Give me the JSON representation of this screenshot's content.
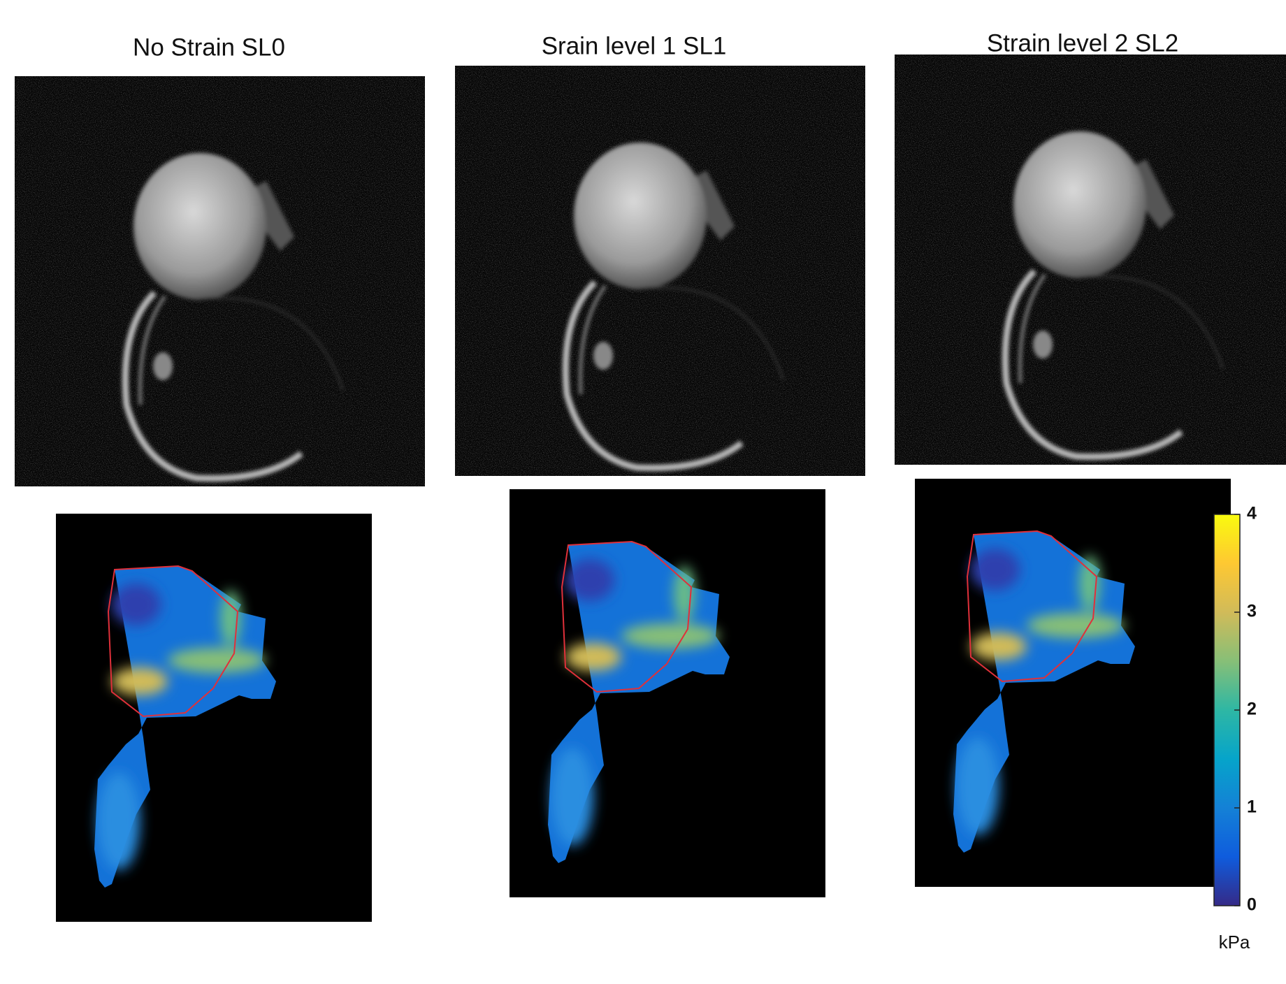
{
  "panels": [
    {
      "title": "No Strain SL0"
    },
    {
      "title": "Srain level 1 SL1"
    },
    {
      "title": "Strain level 2 SL2"
    }
  ],
  "colorbar": {
    "lim": [
      0,
      4
    ],
    "ticks": [
      0,
      1,
      2,
      3,
      4
    ],
    "label": "kPa"
  }
}
